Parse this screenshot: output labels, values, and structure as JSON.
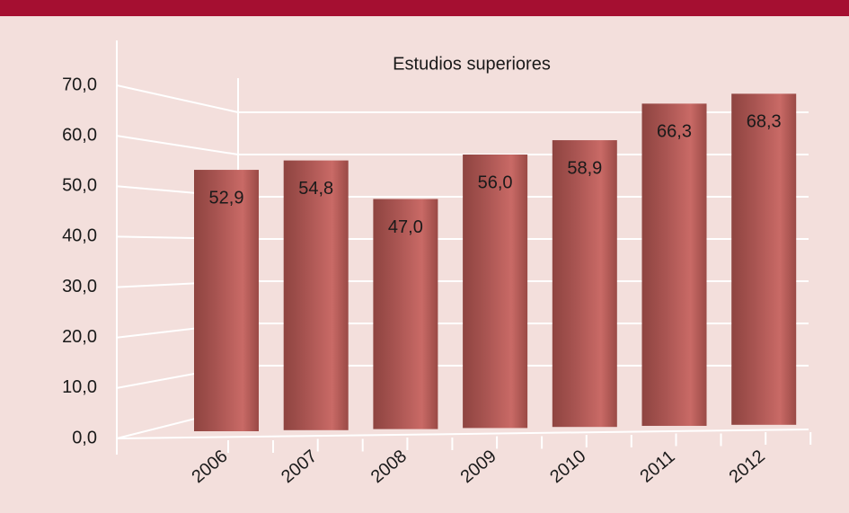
{
  "chart_data": {
    "type": "bar",
    "title": "Estudios superiores",
    "categories": [
      "2006",
      "2007",
      "2008",
      "2009",
      "2010",
      "2011",
      "2012"
    ],
    "values": [
      52.9,
      54.8,
      47.0,
      56.0,
      58.9,
      66.3,
      68.3
    ],
    "value_labels": [
      "52,9",
      "54,8",
      "47,0",
      "56,0",
      "58,9",
      "66,3",
      "68,3"
    ],
    "color": "#b05a55",
    "ylim": [
      0,
      70
    ],
    "yticks": [
      {
        "value": 0,
        "label": "0,0"
      },
      {
        "value": 10,
        "label": "10,0"
      },
      {
        "value": 20,
        "label": "20,0"
      },
      {
        "value": 30,
        "label": "30,0"
      },
      {
        "value": 40,
        "label": "40,0"
      },
      {
        "value": 50,
        "label": "50,0"
      },
      {
        "value": 60,
        "label": "60,0"
      },
      {
        "value": 70,
        "label": "70,0"
      }
    ],
    "grid": true
  }
}
